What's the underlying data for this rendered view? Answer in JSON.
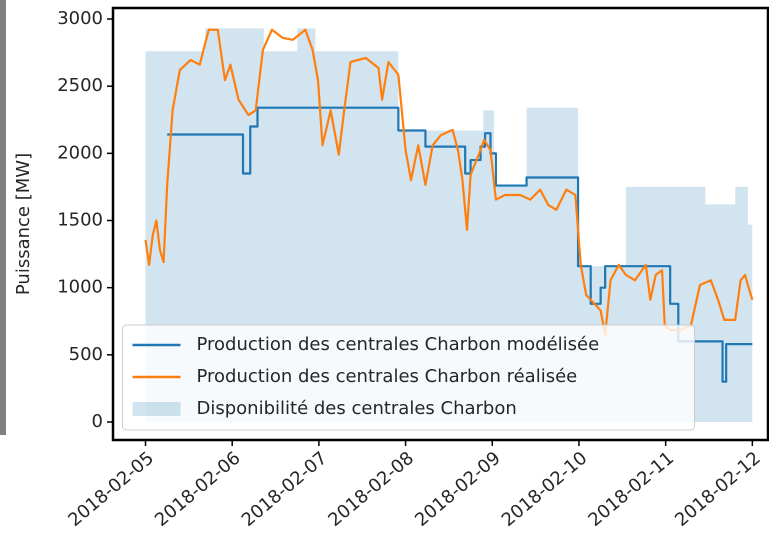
{
  "chart_data": {
    "type": "line",
    "ylabel": "Puissance [MW]",
    "xlim": [
      "2018-02-04T15:00",
      "2018-02-12T04:20"
    ],
    "xticks": [
      "2018-02-05",
      "2018-02-06",
      "2018-02-07",
      "2018-02-08",
      "2018-02-09",
      "2018-02-10",
      "2018-02-11",
      "2018-02-12"
    ],
    "ylim": [
      -134,
      3082
    ],
    "yticks": [
      0,
      500,
      1000,
      1500,
      2000,
      2500,
      3000
    ],
    "legend": "lower center",
    "series": [
      {
        "name": "Production des centrales Charbon modélisée",
        "color": "#1f77b4",
        "kind": "line",
        "step": "post",
        "x": [
          "2018-02-05T06:00",
          "2018-02-06T03:00",
          "2018-02-06T05:00",
          "2018-02-06T07:00",
          "2018-02-07T22:00",
          "2018-02-08T05:30",
          "2018-02-08T16:30",
          "2018-02-08T18:00",
          "2018-02-08T20:45",
          "2018-02-08T22:00",
          "2018-02-08T23:30",
          "2018-02-09T01:00",
          "2018-02-09T09:30",
          "2018-02-09T23:45",
          "2018-02-10T03:15",
          "2018-02-10T06:00",
          "2018-02-10T07:15",
          "2018-02-11T01:15",
          "2018-02-11T03:30",
          "2018-02-11T15:45",
          "2018-02-11T16:45",
          "2018-02-12T00:00"
        ],
        "values": [
          2140,
          1850,
          2200,
          2340,
          2170,
          2050,
          1850,
          1950,
          2050,
          2150,
          2000,
          1760,
          1820,
          1160,
          880,
          1000,
          1160,
          880,
          600,
          300,
          580,
          580
        ]
      },
      {
        "name": "Production des centrales Charbon réalisée",
        "color": "#ff7f0e",
        "kind": "line",
        "x": [
          "2018-02-05T00:00",
          "2018-02-05T01:00",
          "2018-02-05T02:00",
          "2018-02-05T03:00",
          "2018-02-05T04:00",
          "2018-02-05T05:00",
          "2018-02-05T06:00",
          "2018-02-05T07:30",
          "2018-02-05T09:30",
          "2018-02-05T12:30",
          "2018-02-05T15:00",
          "2018-02-05T17:30",
          "2018-02-05T20:00",
          "2018-02-05T22:00",
          "2018-02-05T23:30",
          "2018-02-06T01:45",
          "2018-02-06T04:30",
          "2018-02-06T06:30",
          "2018-02-06T08:30",
          "2018-02-06T11:00",
          "2018-02-06T14:00",
          "2018-02-06T16:45",
          "2018-02-06T20:15",
          "2018-02-06T22:15",
          "2018-02-06T23:45",
          "2018-02-07T01:00",
          "2018-02-07T03:15",
          "2018-02-07T05:30",
          "2018-02-07T07:00",
          "2018-02-07T08:45",
          "2018-02-07T13:00",
          "2018-02-07T16:30",
          "2018-02-07T17:30",
          "2018-02-07T19:15",
          "2018-02-07T22:00",
          "2018-02-08T00:00",
          "2018-02-08T01:30",
          "2018-02-08T03:30",
          "2018-02-08T05:30",
          "2018-02-08T07:30",
          "2018-02-08T09:45",
          "2018-02-08T13:00",
          "2018-02-08T14:30",
          "2018-02-08T15:45",
          "2018-02-08T17:00",
          "2018-02-08T18:00",
          "2018-02-08T20:45",
          "2018-02-08T21:45",
          "2018-02-08T23:30",
          "2018-02-09T01:00",
          "2018-02-09T03:30",
          "2018-02-09T07:45",
          "2018-02-09T10:30",
          "2018-02-09T13:15",
          "2018-02-09T15:30",
          "2018-02-09T17:45",
          "2018-02-09T20:30",
          "2018-02-09T23:00",
          "2018-02-10T00:30",
          "2018-02-10T02:00",
          "2018-02-10T03:15",
          "2018-02-10T06:00",
          "2018-02-10T07:15",
          "2018-02-10T08:45",
          "2018-02-10T11:00",
          "2018-02-10T13:00",
          "2018-02-10T15:30",
          "2018-02-10T18:30",
          "2018-02-10T19:45",
          "2018-02-10T21:15",
          "2018-02-10T23:00",
          "2018-02-10T23:45",
          "2018-02-11T01:15",
          "2018-02-11T04:00",
          "2018-02-11T07:00",
          "2018-02-11T09:30",
          "2018-02-11T12:30",
          "2018-02-11T14:30",
          "2018-02-11T16:15",
          "2018-02-11T19:15",
          "2018-02-11T20:45",
          "2018-02-11T22:00",
          "2018-02-11T22:45",
          "2018-02-12T00:00"
        ],
        "values": [
          1355,
          1170,
          1390,
          1500,
          1280,
          1190,
          1765,
          2320,
          2620,
          2695,
          2660,
          2920,
          2920,
          2545,
          2660,
          2400,
          2285,
          2320,
          2770,
          2920,
          2860,
          2845,
          2920,
          2770,
          2545,
          2060,
          2320,
          1990,
          2320,
          2680,
          2710,
          2635,
          2400,
          2680,
          2585,
          2025,
          1800,
          2060,
          1765,
          2060,
          2135,
          2175,
          2025,
          1800,
          1430,
          1840,
          2025,
          2100,
          2025,
          1655,
          1690,
          1690,
          1655,
          1730,
          1615,
          1580,
          1730,
          1690,
          1170,
          945,
          910,
          830,
          650,
          1055,
          1170,
          1095,
          1055,
          1170,
          910,
          1095,
          1130,
          720,
          685,
          685,
          720,
          1020,
          1055,
          910,
          760,
          760,
          1055,
          1095,
          1020,
          910
        ]
      },
      {
        "name": "Disponibilité des centrales Charbon",
        "color": "#1f77b4",
        "kind": "area",
        "step": "post",
        "x": [
          "2018-02-05T00:00",
          "2018-02-05T16:30",
          "2018-02-06T08:45",
          "2018-02-06T18:00",
          "2018-02-06T23:00",
          "2018-02-07T22:00",
          "2018-02-08T21:30",
          "2018-02-09T00:30",
          "2018-02-09T09:30",
          "2018-02-09T23:45",
          "2018-02-10T13:00",
          "2018-02-11T11:00",
          "2018-02-11T19:15",
          "2018-02-11T22:45",
          "2018-02-12T00:00"
        ],
        "values": [
          2760,
          2930,
          2760,
          2930,
          2760,
          2170,
          2320,
          1760,
          2340,
          1160,
          1750,
          1620,
          1750,
          1470,
          1470
        ]
      }
    ]
  }
}
